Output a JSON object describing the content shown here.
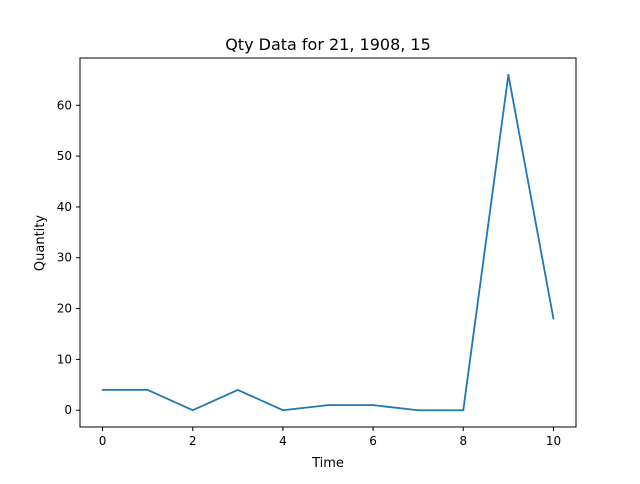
{
  "chart_data": {
    "type": "line",
    "title": "Qty Data for 21, 1908, 15",
    "xlabel": "Time",
    "ylabel": "Quantity",
    "x": [
      0,
      1,
      2,
      3,
      4,
      5,
      6,
      7,
      8,
      9,
      10
    ],
    "series": [
      {
        "values": [
          4,
          4,
          0,
          4,
          0,
          1,
          1,
          0,
          0,
          66,
          18
        ],
        "color": "#1f77b4"
      }
    ],
    "xlim": [
      -0.5,
      10.5
    ],
    "ylim": [
      -3.3,
      69.3
    ],
    "xticks": [
      0,
      2,
      4,
      6,
      8,
      10
    ],
    "yticks": [
      0,
      10,
      20,
      30,
      40,
      50,
      60
    ],
    "grid": false,
    "legend": "none"
  }
}
